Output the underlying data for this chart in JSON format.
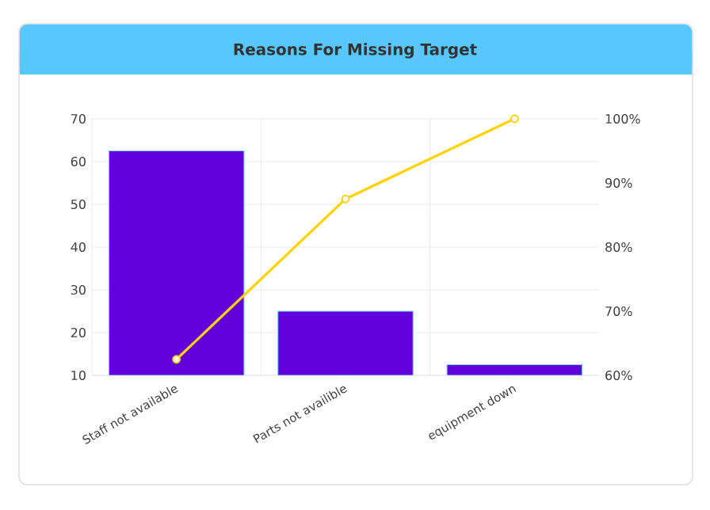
{
  "chart_data": {
    "type": "bar",
    "title": "Reasons For Missing Target",
    "categories": [
      "Staff not available",
      "Parts not availible",
      "equipment down"
    ],
    "series": [
      {
        "color": "#6200dc",
        "values": [
          62.5,
          25,
          12.5
        ]
      },
      {
        "type": "line",
        "axis": "y2",
        "color": "#ffd200",
        "marker": "circle",
        "values": [
          62.5,
          87.5,
          100
        ]
      }
    ],
    "ylim": [
      10,
      70
    ],
    "yticks": [
      10,
      20,
      30,
      40,
      50,
      60,
      70
    ],
    "y2lim": [
      60,
      100
    ],
    "y2ticks": [
      {
        "value": 60,
        "label": "60%"
      },
      {
        "value": 70,
        "label": "70%"
      },
      {
        "value": 80,
        "label": "80%"
      },
      {
        "value": 90,
        "label": "90%"
      },
      {
        "value": 100,
        "label": "100%"
      }
    ],
    "grid": true
  }
}
